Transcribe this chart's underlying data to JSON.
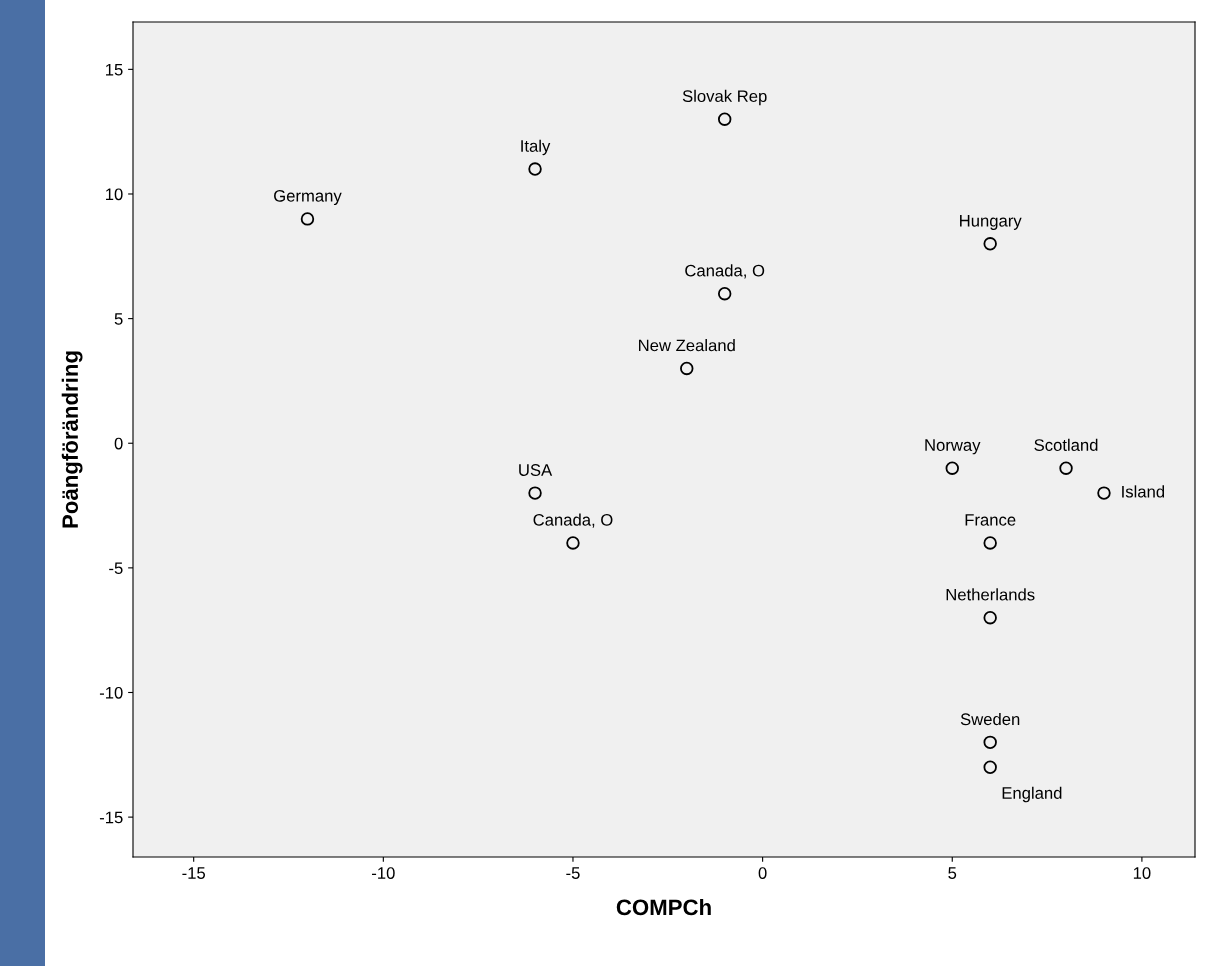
{
  "chart_data": {
    "type": "scatter",
    "xlabel": "COMPCh",
    "ylabel": "Poängförändring",
    "x": [
      -12,
      -6,
      -1,
      -1,
      -2,
      -6,
      -5,
      6,
      5,
      8,
      9,
      6,
      6,
      6,
      6
    ],
    "values": [
      9,
      11,
      13,
      6,
      3,
      -2,
      -4,
      8,
      -1,
      -1,
      -2,
      -4,
      -7,
      -12,
      -13
    ],
    "color": "#000000",
    "marker": "circle",
    "grid": false,
    "legend": false,
    "xlim": [
      -16.6,
      11.4
    ],
    "ylim": [
      -16.6,
      16.9
    ],
    "xticks": [
      -15,
      -10,
      -5,
      0,
      5,
      10
    ],
    "yticks": [
      -15,
      -10,
      -5,
      0,
      5,
      10,
      15
    ],
    "annotations": [
      {
        "text": "Germany",
        "x": -12,
        "y": 9
      },
      {
        "text": "Italy",
        "x": -6,
        "y": 11
      },
      {
        "text": "Slovak Rep",
        "x": -1,
        "y": 13
      },
      {
        "text": "Canada, O",
        "x": -1,
        "y": 6
      },
      {
        "text": "New Zealand",
        "x": -2,
        "y": 3
      },
      {
        "text": "USA",
        "x": -6,
        "y": -2
      },
      {
        "text": "Canada, O",
        "x": -5,
        "y": -4
      },
      {
        "text": "Hungary",
        "x": 6,
        "y": 8
      },
      {
        "text": "Norway",
        "x": 5,
        "y": -1
      },
      {
        "text": "Scotland",
        "x": 8,
        "y": -1
      },
      {
        "text": "Island",
        "x": 9,
        "y": -2
      },
      {
        "text": "France",
        "x": 6,
        "y": -4
      },
      {
        "text": "Netherlands",
        "x": 6,
        "y": -7
      },
      {
        "text": "Sweden",
        "x": 6,
        "y": -12
      },
      {
        "text": "England",
        "x": 6,
        "y": -13
      }
    ]
  }
}
